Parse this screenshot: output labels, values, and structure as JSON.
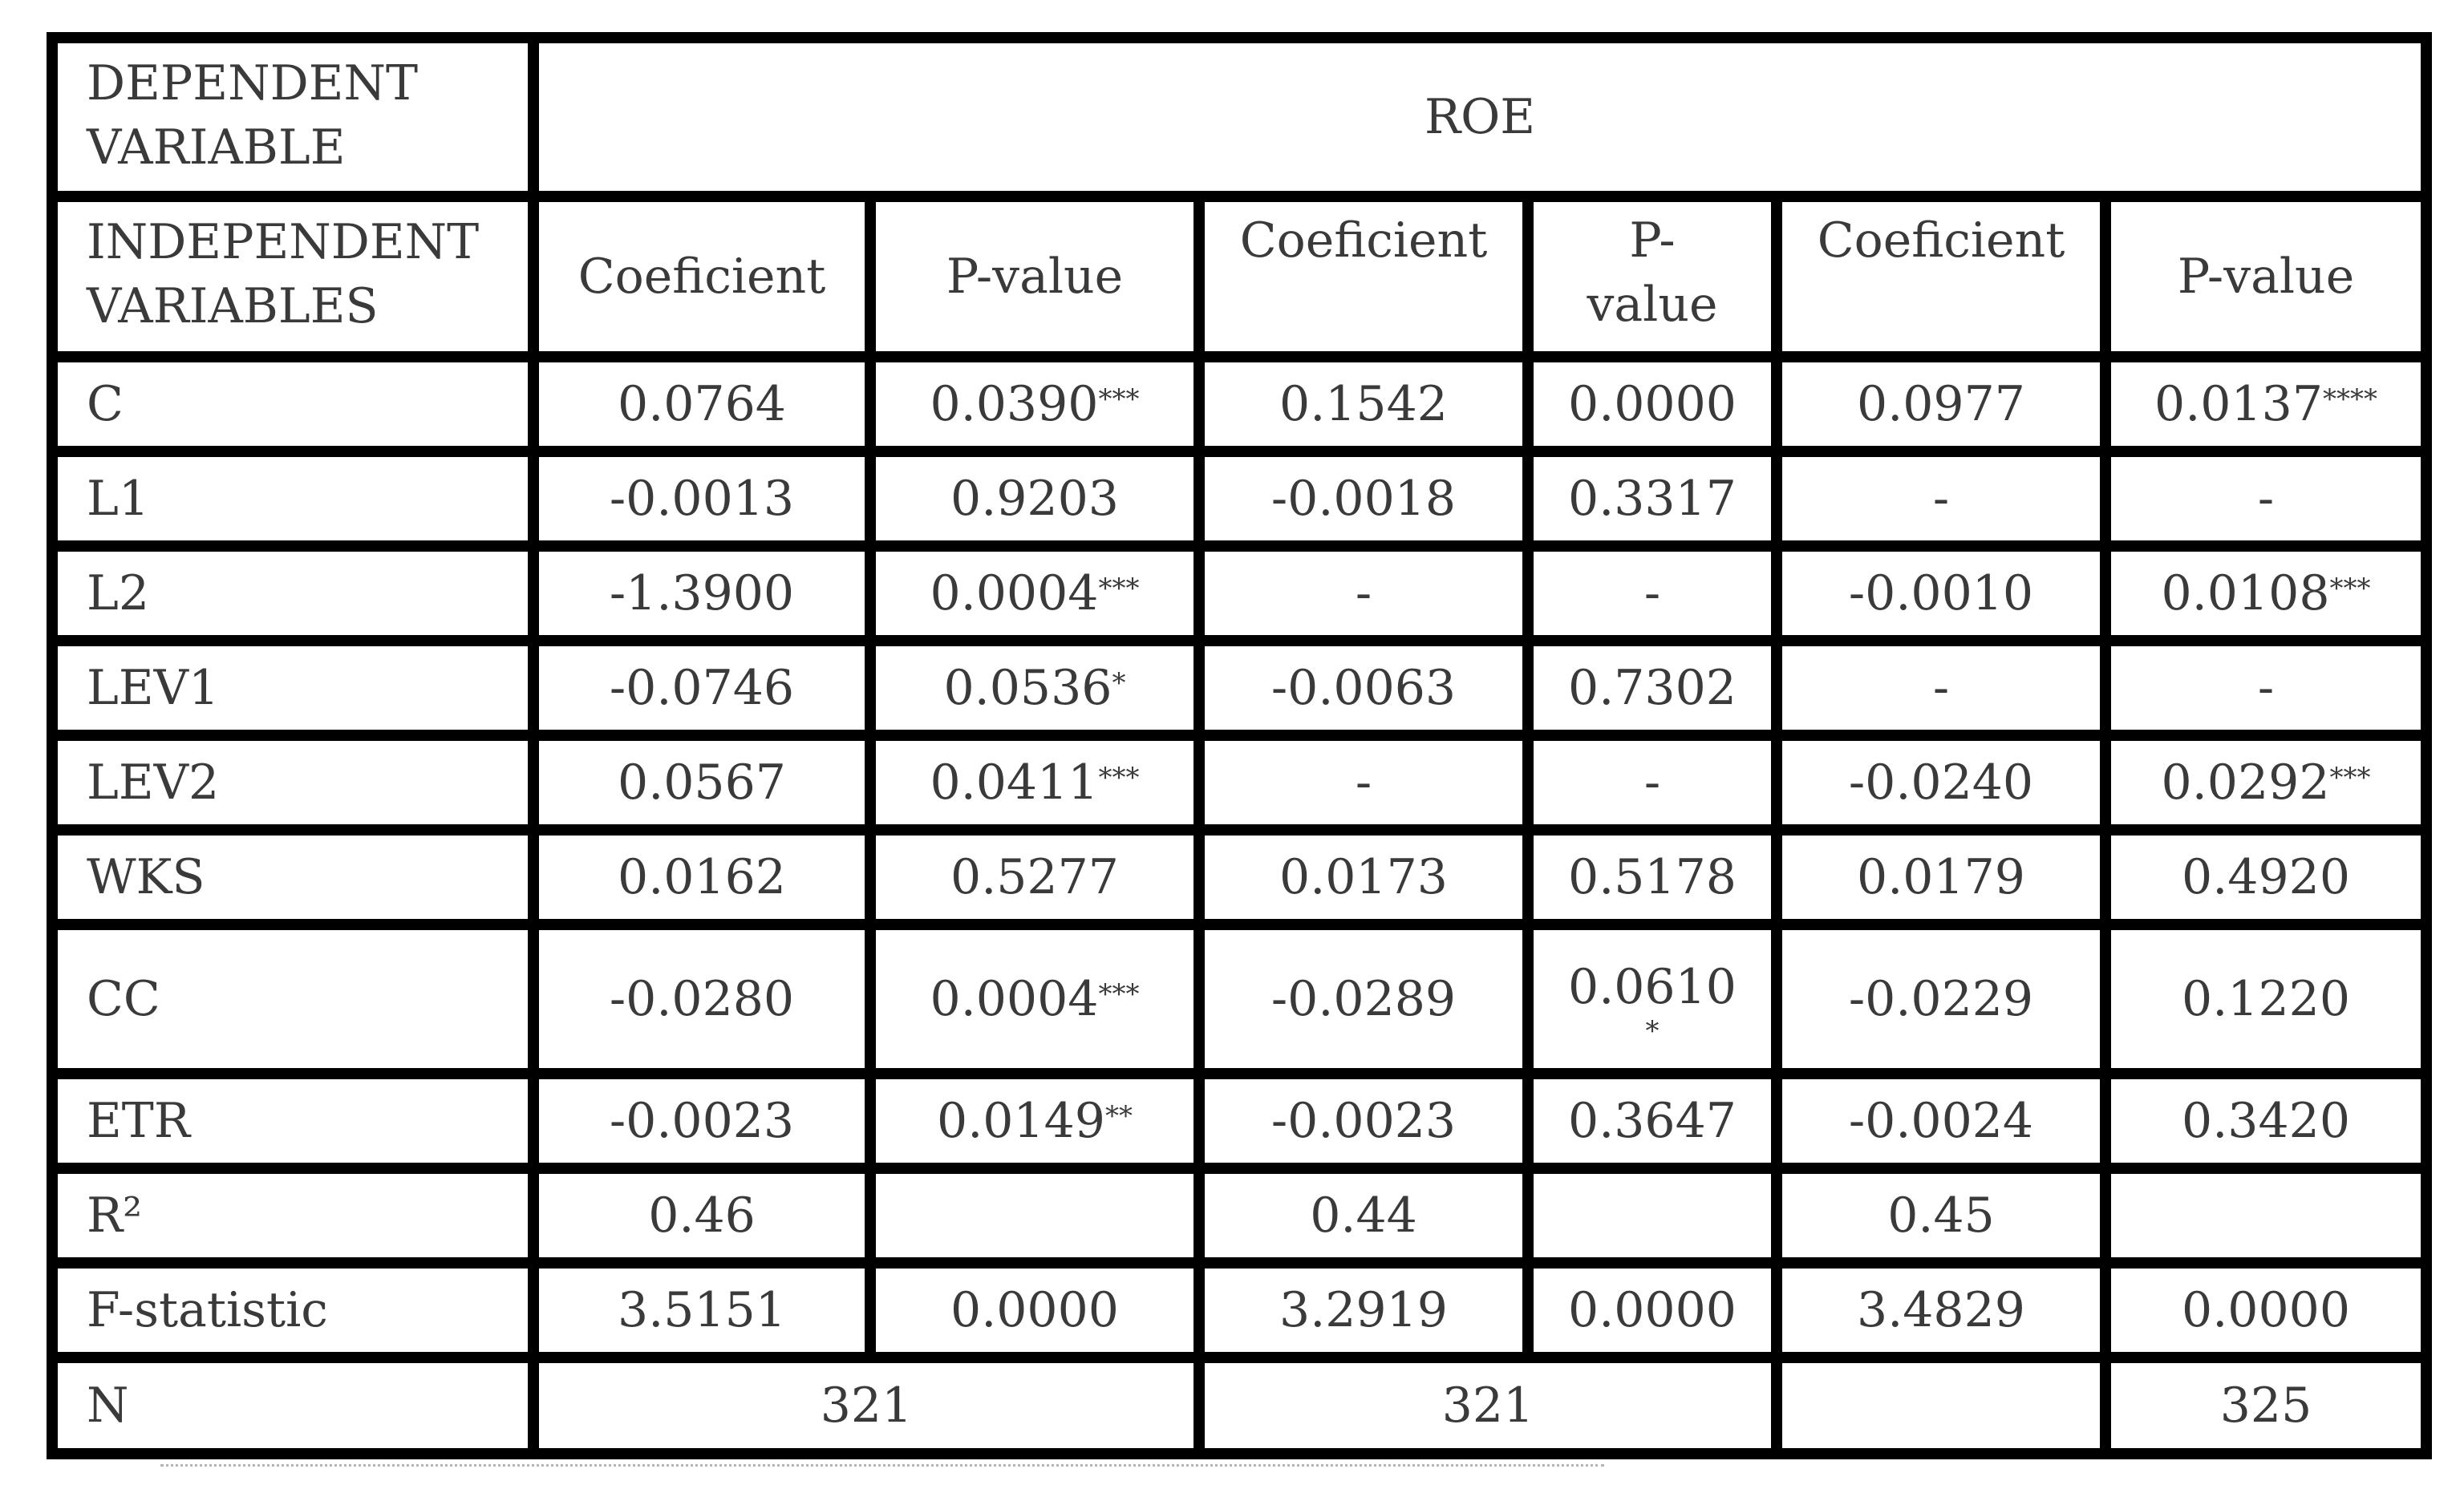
{
  "header": {
    "dependent_label": "DEPENDENT VARIABLE",
    "dependent_value": "ROE",
    "independent_label": "INDEPENDENT VARIABLES",
    "columns": [
      "Coeficient",
      "P-value",
      "Coeficient",
      "P-value",
      "Coeficient",
      "P-value"
    ]
  },
  "rows": [
    {
      "name": "C",
      "cells": [
        {
          "v": "0.0764",
          "s": ""
        },
        {
          "v": "0.0390",
          "s": "***"
        },
        {
          "v": "0.1542",
          "s": ""
        },
        {
          "v": "0.0000",
          "s": ""
        },
        {
          "v": "0.0977",
          "s": ""
        },
        {
          "v": "0.0137",
          "s": "****"
        }
      ]
    },
    {
      "name": "L1",
      "cells": [
        {
          "v": "-0.0013",
          "s": ""
        },
        {
          "v": "0.9203",
          "s": ""
        },
        {
          "v": "-0.0018",
          "s": ""
        },
        {
          "v": "0.3317",
          "s": ""
        },
        {
          "v": "-",
          "s": ""
        },
        {
          "v": "-",
          "s": ""
        }
      ]
    },
    {
      "name": "L2",
      "cells": [
        {
          "v": "-1.3900",
          "s": ""
        },
        {
          "v": "0.0004",
          "s": "***"
        },
        {
          "v": "-",
          "s": ""
        },
        {
          "v": "-",
          "s": ""
        },
        {
          "v": "-0.0010",
          "s": ""
        },
        {
          "v": "0.0108",
          "s": "***"
        }
      ]
    },
    {
      "name": "LEV1",
      "cells": [
        {
          "v": "-0.0746",
          "s": ""
        },
        {
          "v": "0.0536",
          "s": "*"
        },
        {
          "v": "-0.0063",
          "s": ""
        },
        {
          "v": "0.7302",
          "s": ""
        },
        {
          "v": "-",
          "s": ""
        },
        {
          "v": "-",
          "s": ""
        }
      ]
    },
    {
      "name": "LEV2",
      "cells": [
        {
          "v": "0.0567",
          "s": ""
        },
        {
          "v": "0.0411",
          "s": "***"
        },
        {
          "v": "-",
          "s": ""
        },
        {
          "v": "-",
          "s": ""
        },
        {
          "v": "-0.0240",
          "s": ""
        },
        {
          "v": "0.0292",
          "s": "***"
        }
      ]
    },
    {
      "name": "WKS",
      "cells": [
        {
          "v": "0.0162",
          "s": ""
        },
        {
          "v": "0.5277",
          "s": ""
        },
        {
          "v": "0.0173",
          "s": ""
        },
        {
          "v": "0.5178",
          "s": ""
        },
        {
          "v": "0.0179",
          "s": ""
        },
        {
          "v": "0.4920",
          "s": ""
        }
      ]
    },
    {
      "name": "CC",
      "cells": [
        {
          "v": "-0.0280",
          "s": ""
        },
        {
          "v": "0.0004",
          "s": "***"
        },
        {
          "v": "-0.0289",
          "s": ""
        },
        {
          "v": "0.0610",
          "s": "*"
        },
        {
          "v": "-0.0229",
          "s": ""
        },
        {
          "v": "0.1220",
          "s": ""
        }
      ]
    },
    {
      "name": "ETR",
      "cells": [
        {
          "v": "-0.0023",
          "s": ""
        },
        {
          "v": "0.0149",
          "s": "**"
        },
        {
          "v": "-0.0023",
          "s": ""
        },
        {
          "v": "0.3647",
          "s": ""
        },
        {
          "v": "-0.0024",
          "s": ""
        },
        {
          "v": "0.3420",
          "s": ""
        }
      ]
    },
    {
      "name": "R²",
      "cells": [
        {
          "v": "0.46",
          "s": ""
        },
        {
          "v": "",
          "s": ""
        },
        {
          "v": "0.44",
          "s": ""
        },
        {
          "v": "",
          "s": ""
        },
        {
          "v": "0.45",
          "s": ""
        },
        {
          "v": "",
          "s": ""
        }
      ]
    },
    {
      "name": "F-statistic",
      "cells": [
        {
          "v": "3.5151",
          "s": ""
        },
        {
          "v": "0.0000",
          "s": ""
        },
        {
          "v": "3.2919",
          "s": ""
        },
        {
          "v": "0.0000",
          "s": ""
        },
        {
          "v": "3.4829",
          "s": ""
        },
        {
          "v": "0.0000",
          "s": ""
        }
      ]
    }
  ],
  "n_row": {
    "name": "N",
    "model1": "321",
    "model2": "321",
    "model3_coef": "",
    "model3": "325"
  }
}
